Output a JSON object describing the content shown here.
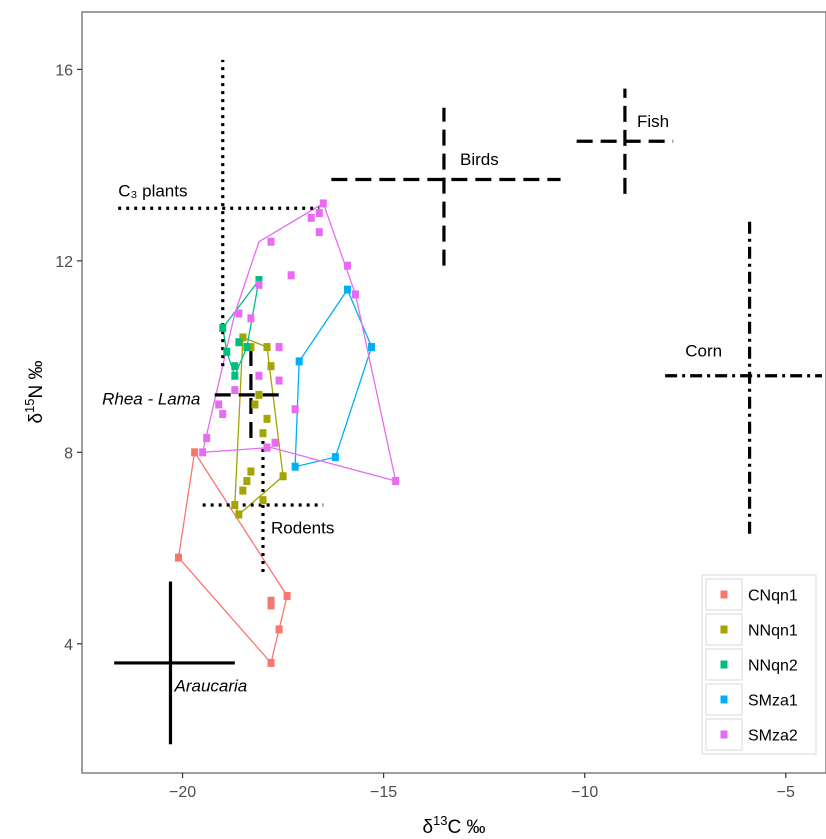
{
  "chart_data": {
    "type": "scatter",
    "xlabel_base": "δ",
    "xlabel_sup": "13",
    "xlabel_rest": "C ‰",
    "ylabel_base": "δ",
    "ylabel_sup": "15",
    "ylabel_rest": "N ‰",
    "xlim": [
      -22.5,
      -4.0
    ],
    "ylim": [
      1.3,
      17.2
    ],
    "x_ticks": [
      -20,
      -15,
      -10,
      -5
    ],
    "x_tick_labels": [
      "−20",
      "−15",
      "−10",
      "−5"
    ],
    "y_ticks": [
      4,
      8,
      12,
      16
    ],
    "y_tick_labels": [
      "4",
      "8",
      "12",
      "16"
    ],
    "grid": false,
    "legend": {
      "position": "bottom-right",
      "entries": [
        "CNqn1",
        "NNqn1",
        "NNqn2",
        "SMza1",
        "SMza2"
      ]
    },
    "series": [
      {
        "name": "CNqn1",
        "color": "#F8766D",
        "x": [
          -19.7,
          -20.1,
          -17.8,
          -17.6,
          -17.8,
          -17.4,
          -17.8
        ],
        "y": [
          8.0,
          5.8,
          3.6,
          4.3,
          4.8,
          5.0,
          4.9
        ],
        "hull": [
          [
            -19.7,
            8.0
          ],
          [
            -20.1,
            5.8
          ],
          [
            -17.8,
            3.6
          ],
          [
            -17.4,
            5.0
          ]
        ]
      },
      {
        "name": "NNqn1",
        "color": "#A3A500",
        "x": [
          -18.5,
          -18.3,
          -17.9,
          -17.5,
          -17.8,
          -18.0,
          -18.3,
          -18.5,
          -18.7,
          -18.6,
          -18.4,
          -17.9,
          -17.9,
          -18.1,
          -18.2,
          -18.0
        ],
        "y": [
          10.4,
          10.2,
          10.2,
          7.5,
          9.8,
          8.4,
          7.6,
          7.2,
          6.9,
          6.7,
          7.4,
          8.7,
          8.1,
          9.2,
          9.0,
          7.0
        ],
        "hull": [
          [
            -18.5,
            10.4
          ],
          [
            -17.9,
            10.2
          ],
          [
            -17.5,
            7.5
          ],
          [
            -18.6,
            6.7
          ],
          [
            -18.7,
            6.9
          ]
        ]
      },
      {
        "name": "NNqn2",
        "color": "#00BF7D",
        "x": [
          -19.0,
          -18.9,
          -18.1,
          -18.7,
          -18.6,
          -18.7,
          -18.4
        ],
        "y": [
          10.6,
          10.1,
          11.6,
          9.6,
          10.3,
          9.8,
          10.2
        ],
        "hull": [
          [
            -19.0,
            10.6
          ],
          [
            -18.1,
            11.6
          ],
          [
            -18.4,
            10.2
          ],
          [
            -18.7,
            9.6
          ],
          [
            -18.9,
            10.1
          ]
        ]
      },
      {
        "name": "SMza1",
        "color": "#00B0F6",
        "x": [
          -17.1,
          -15.9,
          -15.3,
          -16.2,
          -17.2
        ],
        "y": [
          9.9,
          11.4,
          10.2,
          7.9,
          7.7
        ],
        "hull": [
          [
            -17.1,
            9.9
          ],
          [
            -15.9,
            11.4
          ],
          [
            -15.3,
            10.2
          ],
          [
            -16.2,
            7.9
          ],
          [
            -17.2,
            7.7
          ]
        ]
      },
      {
        "name": "SMza2",
        "color": "#E76BF3",
        "x": [
          -16.5,
          -16.6,
          -17.8,
          -18.1,
          -15.9,
          -15.7,
          -14.7,
          -17.3,
          -17.6,
          -17.9,
          -17.7,
          -17.2,
          -18.3,
          -19.5,
          -19.4,
          -19.0,
          -19.1,
          -18.7,
          -18.1,
          -17.6,
          -16.8,
          -16.6,
          -18.6
        ],
        "y": [
          13.2,
          12.6,
          12.4,
          11.5,
          11.9,
          11.3,
          7.4,
          11.7,
          10.2,
          8.1,
          8.2,
          8.9,
          10.8,
          8.0,
          8.3,
          8.8,
          9.0,
          9.3,
          9.6,
          9.5,
          12.9,
          13.0,
          10.9
        ],
        "hull": [
          [
            -16.5,
            13.2
          ],
          [
            -15.7,
            11.3
          ],
          [
            -14.7,
            7.4
          ],
          [
            -17.8,
            8.1
          ],
          [
            -19.5,
            8.0
          ],
          [
            -18.7,
            10.9
          ],
          [
            -18.1,
            12.4
          ]
        ]
      }
    ],
    "annotations": [
      {
        "name": "C₃ plants",
        "cx": -19.0,
        "cy": 13.1,
        "x0": -21.6,
        "x1": -16.6,
        "y0": 9.8,
        "y1": 16.2,
        "dash": "dot",
        "label_x": -21.6,
        "label_y": 13.35,
        "italic": false
      },
      {
        "name": "Birds",
        "cx": -13.5,
        "cy": 13.7,
        "x0": -16.3,
        "x1": -10.6,
        "y0": 11.9,
        "y1": 15.2,
        "dash": "dash",
        "label_x": -13.1,
        "label_y": 14.0,
        "italic": false
      },
      {
        "name": "Fish",
        "cx": -9.0,
        "cy": 14.5,
        "x0": -10.2,
        "x1": -7.8,
        "y0": 13.4,
        "y1": 15.6,
        "dash": "dash",
        "label_x": -8.7,
        "label_y": 14.8,
        "italic": false
      },
      {
        "name": "Corn",
        "cx": -5.9,
        "cy": 9.6,
        "x0": -8.0,
        "x1": -4.1,
        "y0": 6.3,
        "y1": 12.9,
        "dash": "dashdot",
        "label_x": -7.5,
        "label_y": 10.0,
        "italic": false
      },
      {
        "name": "Rhea - Lama",
        "cx": -18.3,
        "cy": 9.2,
        "x0": -19.2,
        "x1": -17.5,
        "y0": 8.3,
        "y1": 10.3,
        "dash": "dash",
        "label_x": -22.0,
        "label_y": 9.0,
        "italic": true
      },
      {
        "name": "Rodents",
        "cx": -18.0,
        "cy": 6.9,
        "x0": -19.5,
        "x1": -16.5,
        "y0": 5.5,
        "y1": 8.4,
        "dash": "dot",
        "label_x": -17.8,
        "label_y": 6.3,
        "italic": false
      },
      {
        "name": "Araucaria",
        "cx": -20.3,
        "cy": 3.6,
        "x0": -21.7,
        "x1": -18.7,
        "y0": 1.9,
        "y1": 5.3,
        "dash": "solid",
        "label_x": -20.2,
        "label_y": 3.0,
        "italic": true
      }
    ]
  }
}
